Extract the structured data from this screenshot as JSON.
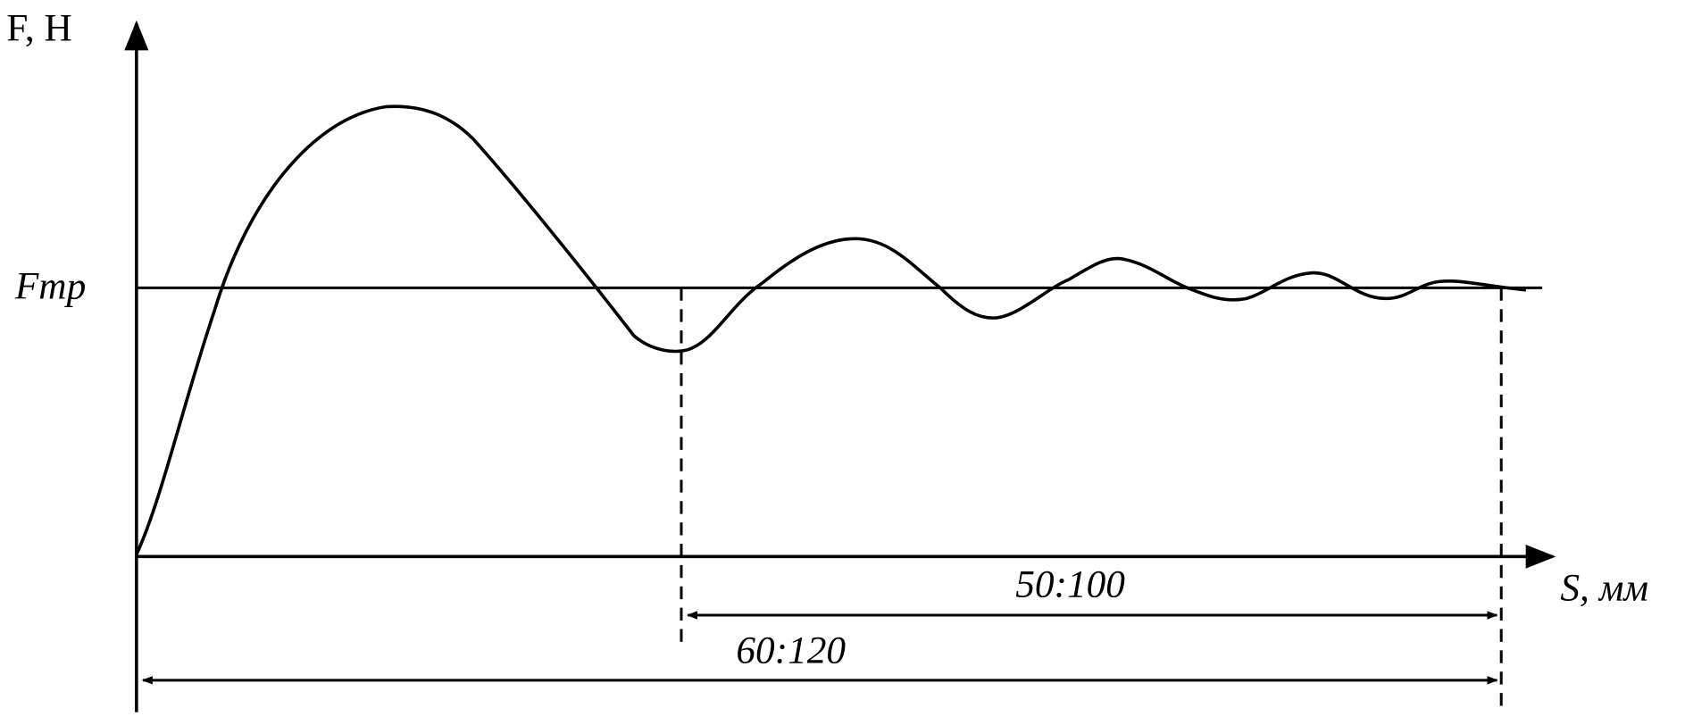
{
  "axis_labels": {
    "y": "F, Н",
    "x": "S, мм"
  },
  "level_label": "Fтр",
  "dimensions": [
    {
      "label": "50:100"
    },
    {
      "label": "60:120"
    }
  ]
}
